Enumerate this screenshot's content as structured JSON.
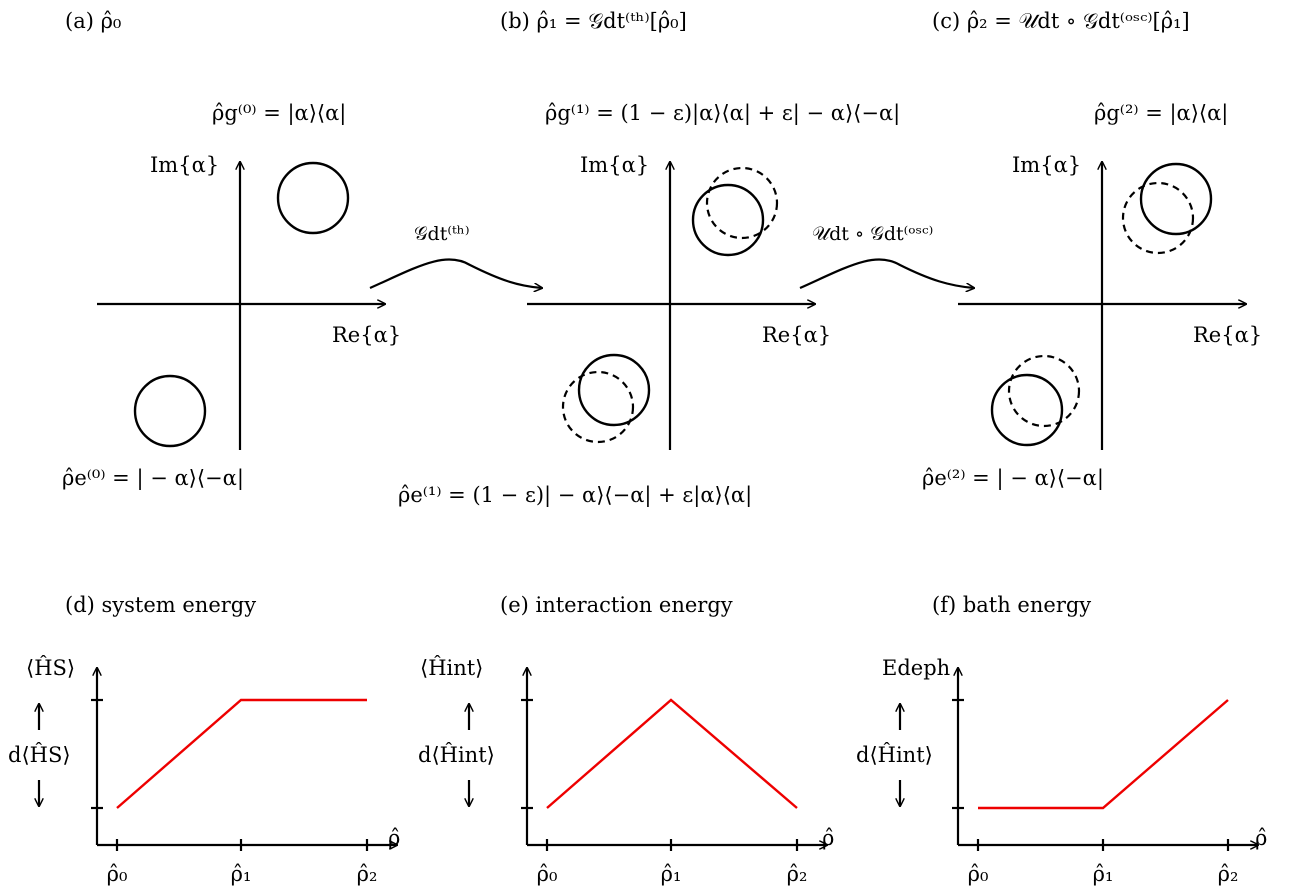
{
  "panels_top": [
    {
      "id": "a",
      "caption": "(a) ρ̂₀",
      "ground_label": "ρ̂g⁽⁰⁾ = |α⟩⟨α|",
      "excited_label": "ρ̂e⁽⁰⁾ = | − α⟩⟨−α|",
      "re_label": "Re{α}",
      "im_label": "Im{α}"
    },
    {
      "id": "b",
      "caption": "(b) ρ̂₁ = 𝒢dt⁽ᵗʰ⁾[ρ̂₀]",
      "ground_label": "ρ̂g⁽¹⁾ = (1 − ε)|α⟩⟨α| + ε| − α⟩⟨−α|",
      "excited_label": "ρ̂e⁽¹⁾ = (1 − ε)| − α⟩⟨−α| + ε|α⟩⟨α|",
      "re_label": "Re{α}",
      "im_label": "Im{α}"
    },
    {
      "id": "c",
      "caption": "(c) ρ̂₂ = 𝒰dt ∘ 𝒢dt⁽ᵒˢᶜ⁾[ρ̂₁]",
      "ground_label": "ρ̂g⁽²⁾ = |α⟩⟨α|",
      "excited_label": "ρ̂e⁽²⁾ = | − α⟩⟨−α|",
      "re_label": "Re{α}",
      "im_label": "Im{α}"
    }
  ],
  "arrows": [
    {
      "label": "𝒢dt⁽ᵗʰ⁾"
    },
    {
      "label": "𝒰dt ∘ 𝒢dt⁽ᵒˢᶜ⁾"
    }
  ],
  "colors": {
    "energy_line": "#ee0000",
    "ink": "#000000"
  },
  "chart_data": [
    {
      "type": "line",
      "title": "(d) system energy",
      "ylabel": "⟨ĤS⟩",
      "delta_label": "d⟨ĤS⟩",
      "xlabel": "ρ̂",
      "categories": [
        "ρ̂₀",
        "ρ̂₁",
        "ρ̂₂"
      ],
      "values": [
        0,
        1,
        1
      ],
      "ylim": [
        0,
        1
      ]
    },
    {
      "type": "line",
      "title": "(e) interaction energy",
      "ylabel": "⟨Ĥint⟩",
      "delta_label": "d⟨Ĥint⟩",
      "xlabel": "ρ̂",
      "categories": [
        "ρ̂₀",
        "ρ̂₁",
        "ρ̂₂"
      ],
      "values": [
        0,
        1,
        0
      ],
      "ylim": [
        0,
        1
      ]
    },
    {
      "type": "line",
      "title": "(f) bath energy",
      "ylabel": "Edeph",
      "delta_label": "d⟨Ĥint⟩",
      "xlabel": "ρ̂",
      "categories": [
        "ρ̂₀",
        "ρ̂₁",
        "ρ̂₂"
      ],
      "values": [
        0,
        0,
        1
      ],
      "ylim": [
        0,
        1
      ]
    }
  ]
}
